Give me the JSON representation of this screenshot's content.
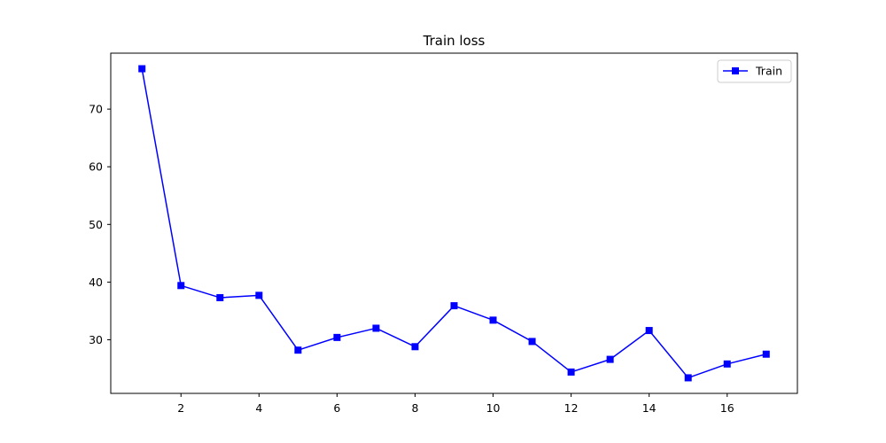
{
  "chart_data": {
    "type": "line",
    "title": "Train loss",
    "xlabel": "",
    "ylabel": "",
    "x": [
      1,
      2,
      3,
      4,
      5,
      6,
      7,
      8,
      9,
      10,
      11,
      12,
      13,
      14,
      15,
      16,
      17
    ],
    "series": [
      {
        "name": "Train",
        "color": "#0000ff",
        "marker": "square",
        "values": [
          77.0,
          39.4,
          37.3,
          37.7,
          28.2,
          30.4,
          32.0,
          28.8,
          35.9,
          33.4,
          29.7,
          24.4,
          26.6,
          31.6,
          23.4,
          25.8,
          27.5
        ]
      }
    ],
    "xticks": [
      2,
      4,
      6,
      8,
      10,
      12,
      14,
      16
    ],
    "yticks": [
      30,
      40,
      50,
      60,
      70
    ],
    "xlim": [
      0.2,
      17.8
    ],
    "ylim": [
      20.7,
      79.7
    ],
    "grid": false,
    "legend_position": "top-right"
  }
}
